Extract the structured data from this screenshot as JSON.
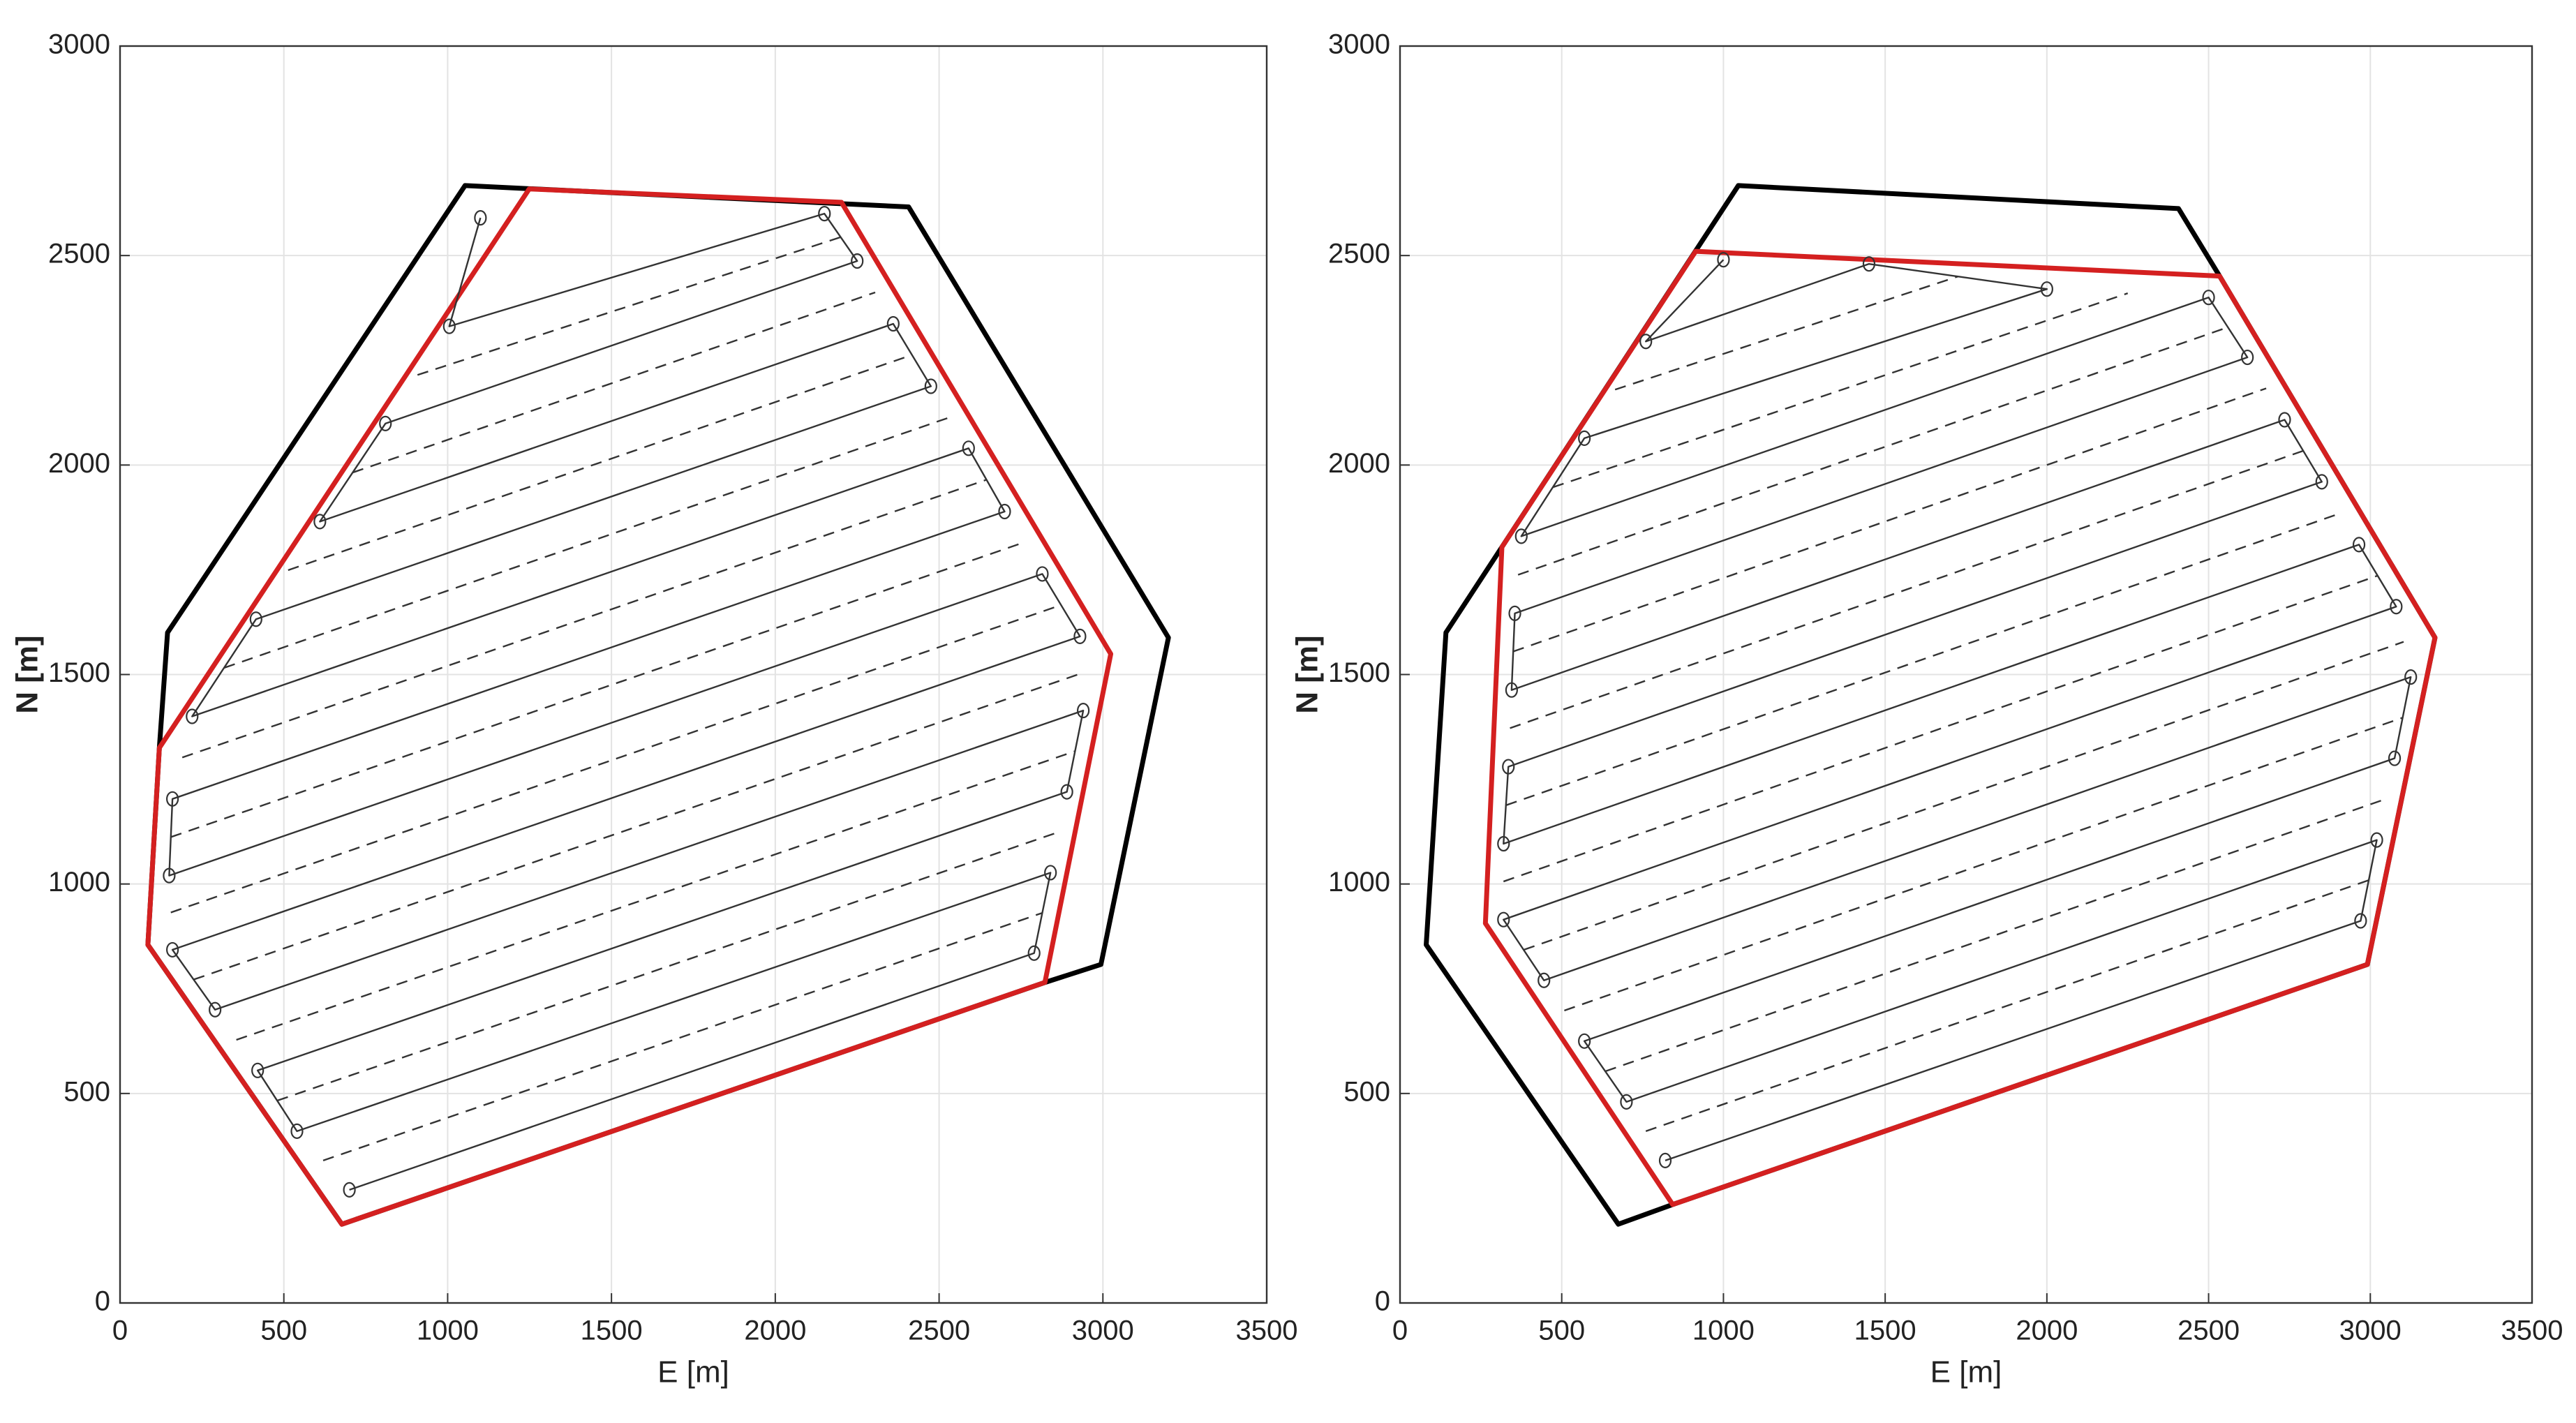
{
  "chart_data": [
    {
      "type": "line",
      "xlabel": "E [m]",
      "ylabel": "N [m]",
      "xlim": [
        0,
        3500
      ],
      "ylim": [
        0,
        3000
      ],
      "xticks": [
        0,
        500,
        1000,
        1500,
        2000,
        2500,
        3000,
        3500
      ],
      "yticks": [
        0,
        500,
        1000,
        1500,
        2000,
        2500,
        3000
      ],
      "grid": true,
      "series": [
        {
          "color": "#000000",
          "line_style": "solid",
          "closed": true,
          "width": "thick",
          "x": [
            145,
            1053,
            2407,
            3200,
            2994,
            2823,
            677,
            85,
            120
          ],
          "values": [
            1600,
            2667,
            2616,
            1588,
            808,
            765,
            188,
            855,
            1325
          ]
        },
        {
          "color": "#d42020",
          "line_style": "solid",
          "closed": true,
          "width": "thick",
          "x": [
            120,
            1249,
            2202,
            3024,
            2823,
            677,
            85
          ],
          "values": [
            1325,
            2659,
            2627,
            1549,
            765,
            188,
            855
          ]
        },
        {
          "color": "#333333",
          "line_style": "solid",
          "marker": "circle",
          "width": "thin",
          "x": [
            700,
            2790,
            2840,
            540,
            420,
            2890,
            2940,
            290,
            160,
            2930,
            2815,
            150,
            160,
            2700,
            2590,
            220,
            415,
            2475,
            2360,
            610,
            810,
            2250,
            2150,
            1005,
            1100
          ],
          "values": [
            270,
            835,
            1027,
            410,
            555,
            1220,
            1414,
            700,
            843,
            1591,
            1740,
            1020,
            1203,
            1889,
            2040,
            1400,
            1632,
            2188,
            2337,
            1865,
            2099,
            2487,
            2600,
            2331,
            2590
          ]
        },
        {
          "color": "#333333",
          "line_style": "dashed",
          "width": "thin",
          "x": [
            620,
            2815,
            null,
            480,
            2865,
            null,
            355,
            2915,
            null,
            225,
            2935,
            null,
            155,
            2873,
            null,
            155,
            2758,
            null,
            190,
            2645,
            null,
            318,
            2533,
            null,
            513,
            2418,
            null,
            710,
            2305,
            null,
            908,
            2200
          ],
          "values": [
            340,
            931,
            null,
            483,
            1124,
            null,
            628,
            1317,
            null,
            772,
            1503,
            null,
            932,
            1666,
            null,
            1112,
            1815,
            null,
            1302,
            1965,
            null,
            1516,
            2114,
            null,
            1749,
            2263,
            null,
            1982,
            2412,
            null,
            2215,
            2544
          ]
        }
      ]
    },
    {
      "type": "line",
      "xlabel": "E [m]",
      "ylabel": "N [m]",
      "xlim": [
        0,
        3500
      ],
      "ylim": [
        0,
        3000
      ],
      "xticks": [
        0,
        500,
        1000,
        1500,
        2000,
        2500,
        3000,
        3500
      ],
      "yticks": [
        0,
        500,
        1000,
        1500,
        2000,
        2500,
        3000
      ],
      "grid": true,
      "series": [
        {
          "color": "#000000",
          "line_style": "solid",
          "closed": true,
          "width": "thick",
          "x": [
            81,
            142,
            1046,
            2407,
            2534,
            3200,
            2991,
            843,
            675
          ],
          "values": [
            855,
            1600,
            2667,
            2612,
            2451,
            1588,
            808,
            235,
            188
          ]
        },
        {
          "color": "#d42020",
          "line_style": "solid",
          "closed": true,
          "width": "thick",
          "x": [
            914,
            2534,
            3200,
            2991,
            843,
            264,
            315
          ],
          "values": [
            2510,
            2451,
            1588,
            808,
            235,
            906,
            1804
          ]
        },
        {
          "color": "#333333",
          "line_style": "solid",
          "marker": "circle",
          "width": "thin",
          "x": [
            820,
            2970,
            3020,
            700,
            570,
            3075,
            3125,
            445,
            320,
            3080,
            2965,
            320,
            335,
            2850,
            2735,
            345,
            355,
            2620,
            2500,
            375,
            570,
            2000,
            1450,
            760,
            1000
          ],
          "values": [
            340,
            912,
            1105,
            480,
            625,
            1300,
            1494,
            770,
            915,
            1662,
            1810,
            1096,
            1280,
            1960,
            2108,
            1463,
            1646,
            2257,
            2400,
            1830,
            2064,
            2420,
            2480,
            2295,
            2490
          ]
        },
        {
          "color": "#333333",
          "line_style": "dashed",
          "width": "thin",
          "x": [
            760,
            2995,
            null,
            635,
            3048,
            null,
            508,
            3100,
            null,
            383,
            3103,
            null,
            320,
            3023,
            null,
            328,
            2908,
            null,
            340,
            2793,
            null,
            350,
            2678,
            null,
            365,
            2560,
            null,
            473,
            2250,
            null,
            665,
            1725
          ],
          "values": [
            410,
            1009,
            null,
            553,
            1203,
            null,
            698,
            1397,
            null,
            843,
            1578,
            null,
            1006,
            1736,
            null,
            1188,
            1885,
            null,
            1372,
            2034,
            null,
            1555,
            2183,
            null,
            1738,
            2329,
            null,
            1947,
            2410,
            null,
            2180,
            2450
          ]
        }
      ]
    }
  ]
}
